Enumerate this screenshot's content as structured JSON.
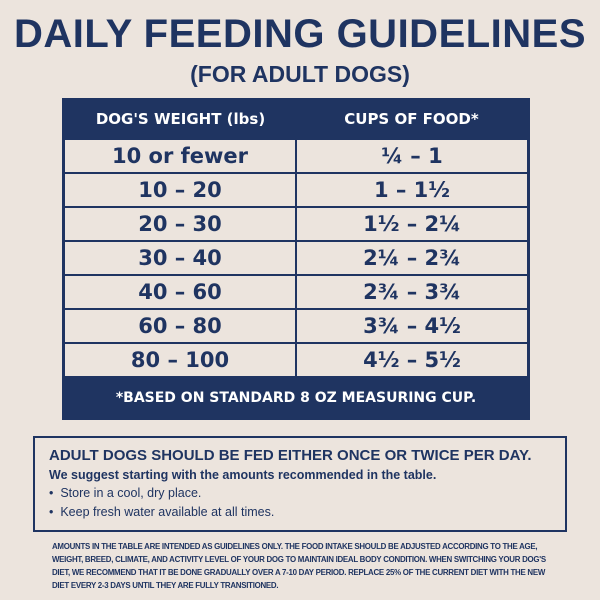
{
  "title": "DAILY FEEDING GUIDELINES",
  "subtitle": "(FOR ADULT DOGS)",
  "table": {
    "headers": [
      "DOG'S WEIGHT (lbs)",
      "CUPS OF FOOD*"
    ],
    "rows": [
      [
        "10 or fewer",
        "¼ – 1"
      ],
      [
        "10 – 20",
        "1 – 1½"
      ],
      [
        "20 – 30",
        "1½ – 2¼"
      ],
      [
        "30 – 40",
        "2¼ – 2¾"
      ],
      [
        "40 – 60",
        "2¾ – 3¾"
      ],
      [
        "60 – 80",
        "3¾ – 4½"
      ],
      [
        "80 – 100",
        "4½ – 5½"
      ]
    ],
    "footnote": "*BASED ON STANDARD 8 OZ MEASURING CUP."
  },
  "tips": {
    "heading": "ADULT DOGS SHOULD BE FED EITHER ONCE OR TWICE PER DAY.",
    "subheading": "We suggest starting with the amounts recommended in the table.",
    "bullets": [
      "Store in a cool, dry place.",
      "Keep fresh water available at all times."
    ]
  },
  "disclaimer": "AMOUNTS IN THE TABLE ARE INTENDED AS GUIDELINES ONLY. THE FOOD INTAKE SHOULD BE ADJUSTED ACCORDING TO THE AGE, WEIGHT, BREED, CLIMATE, AND ACTIVITY LEVEL OF YOUR DOG TO MAINTAIN IDEAL BODY CONDITION. WHEN SWITCHING YOUR DOG'S DIET, WE RECOMMEND THAT IT BE DONE GRADUALLY OVER A 7-10 DAY PERIOD. REPLACE 25% OF THE CURRENT DIET WITH THE NEW DIET EVERY 2-3 DAYS UNTIL THEY ARE FULLY TRANSITIONED.",
  "colors": {
    "navy": "#1f3461",
    "background": "#ece4dd"
  }
}
